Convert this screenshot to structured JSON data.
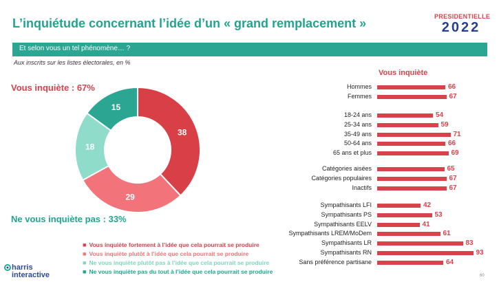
{
  "title": "L’inquiétude concernant l’idée d’un « grand remplacement »",
  "logo": {
    "line1": "PRESIDENTIELLE",
    "line2": "2022"
  },
  "question": "Et selon vous un tel phénomène… ?",
  "subtitle": "Aux inscrits sur les listes électorales, en %",
  "labels": {
    "worried": "Vous inquiète : 67%",
    "not_worried": "Ne vous inquiète pas : 33%"
  },
  "colors": {
    "strong_worry": "#d93f47",
    "somewhat_worry": "#f2737a",
    "somewhat_not": "#8fdccb",
    "not_at_all": "#2aa693"
  },
  "legend": [
    "Vous inquiète fortement à l’idée que cela pourrait se produire",
    "Vous inquiète plutôt à l’idée que cela pourrait se produire",
    "Ne vous inquiète plutôt pas à l’idée que cela pourrait se produire",
    "Ne vous inquiète pas du tout à l’idée que cela pourrait se produire"
  ],
  "brand": {
    "line1": "harris",
    "line2": "interactive"
  },
  "page_number": "60",
  "chart_data": [
    {
      "type": "pie",
      "variant": "donut",
      "categories": [
        "Vous inquiète fortement à l’idée que cela pourrait se produire",
        "Vous inquiète plutôt à l’idée que cela pourrait se produire",
        "Ne vous inquiète plutôt pas à l’idée que cela pourrait se produire",
        "Ne vous inquiète pas du tout à l’idée que cela pourrait se produire"
      ],
      "values": [
        38,
        29,
        18,
        15
      ]
    },
    {
      "type": "bar",
      "orientation": "horizontal",
      "title": "Vous inquiète",
      "categories": [
        "Hommes",
        "Femmes",
        "18-24 ans",
        "25-34 ans",
        "35-49 ans",
        "50-64 ans",
        "65 ans et plus",
        "Catégories aisées",
        "Catégories populaires",
        "Inactifs",
        "Sympathisants LFI",
        "Sympathisants PS",
        "Sympathisants EELV",
        "Sympathisants LREM/MoDem",
        "Sympathisants LR",
        "Sympathisants RN",
        "Sans préférence partisane"
      ],
      "values": [
        66,
        67,
        54,
        59,
        71,
        66,
        69,
        65,
        67,
        67,
        42,
        53,
        41,
        61,
        83,
        93,
        64
      ],
      "groups": [
        2,
        5,
        3,
        7
      ],
      "xlim": [
        0,
        100
      ]
    }
  ]
}
